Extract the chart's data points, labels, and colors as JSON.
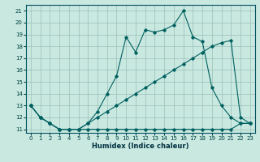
{
  "xlabel": "Humidex (Indice chaleur)",
  "background_color": "#c8e8e0",
  "grid_color": "#9bbfb8",
  "line_color": "#006060",
  "xlim_min": -0.5,
  "xlim_max": 23.5,
  "ylim_min": 10.7,
  "ylim_max": 21.5,
  "yticks": [
    11,
    12,
    13,
    14,
    15,
    16,
    17,
    18,
    19,
    20,
    21
  ],
  "xticks": [
    0,
    1,
    2,
    3,
    4,
    5,
    6,
    7,
    8,
    9,
    10,
    11,
    12,
    13,
    14,
    15,
    16,
    17,
    18,
    19,
    20,
    21,
    22,
    23
  ],
  "series1_x": [
    0,
    1,
    2,
    3,
    4,
    5,
    6,
    7,
    8,
    9,
    10,
    11,
    12,
    13,
    14,
    15,
    16,
    17,
    18,
    19,
    20,
    21,
    22,
    23
  ],
  "series1_y": [
    13.0,
    12.0,
    11.5,
    11.0,
    11.0,
    11.0,
    11.0,
    11.0,
    11.0,
    11.0,
    11.0,
    11.0,
    11.0,
    11.0,
    11.0,
    11.0,
    11.0,
    11.0,
    11.0,
    11.0,
    11.0,
    11.0,
    11.5,
    11.5
  ],
  "series2_x": [
    0,
    1,
    2,
    3,
    4,
    5,
    6,
    7,
    8,
    9,
    10,
    11,
    12,
    13,
    14,
    15,
    16,
    17,
    18,
    19,
    20,
    21,
    22,
    23
  ],
  "series2_y": [
    13.0,
    12.0,
    11.5,
    11.0,
    11.0,
    11.0,
    11.5,
    12.0,
    12.5,
    13.0,
    13.5,
    14.0,
    14.5,
    15.0,
    15.5,
    16.0,
    16.5,
    17.0,
    17.5,
    18.0,
    18.3,
    18.5,
    12.0,
    11.5
  ],
  "series3_x": [
    0,
    1,
    2,
    3,
    4,
    5,
    6,
    7,
    8,
    9,
    10,
    11,
    12,
    13,
    14,
    15,
    16,
    17,
    18,
    19,
    20,
    21,
    22,
    23
  ],
  "series3_y": [
    13.0,
    12.0,
    11.5,
    11.0,
    11.0,
    11.0,
    11.5,
    12.5,
    14.0,
    15.5,
    18.8,
    17.5,
    19.4,
    19.2,
    19.4,
    19.8,
    21.0,
    18.8,
    18.4,
    14.5,
    13.0,
    12.0,
    11.5,
    11.5
  ]
}
